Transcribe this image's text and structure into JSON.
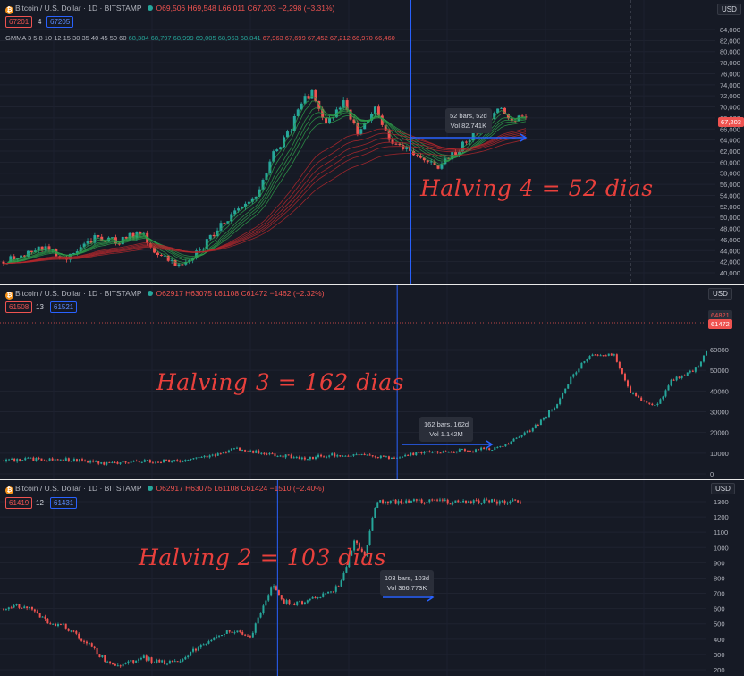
{
  "panels": [
    {
      "title": "Bitcoin / U.S. Dollar · 1D · BITSTAMP",
      "ohlc": {
        "o": "O69,506",
        "h": "H69,548",
        "l": "L66,011",
        "c": "C67,203",
        "chg": "−2,298 (−3.31%)"
      },
      "sell": "67201",
      "spread": "4",
      "buy": "67205",
      "gmma": {
        "label": "GMMA 3 5 8 10 12 15 30 35 40 45 50 60",
        "green": "68,384 68,797 68,999 69,005 68,963 68,841",
        "red": "67,963 67,699 67,452 67,212 66,970 66,460"
      },
      "currency": "USD",
      "annotation": "Halving 4 = 52 dias",
      "measure": {
        "line1": "52 bars, 52d",
        "line2": "Vol 82.741K"
      },
      "last_price": "67,203"
    },
    {
      "title": "Bitcoin / U.S. Dollar · 1D · BITSTAMP",
      "ohlc": {
        "o": "O62917",
        "h": "H63075",
        "l": "L61108",
        "c": "C61472",
        "chg": "−1462 (−2.32%)"
      },
      "sell": "61508",
      "spread": "13",
      "buy": "61521",
      "currency": "USD",
      "annotation": "Halving 3 = 162 dias",
      "measure": {
        "line1": "162 bars, 162d",
        "line2": "Vol 1.142M"
      },
      "price_tags": [
        "64821",
        "61472"
      ]
    },
    {
      "title": "Bitcoin / U.S. Dollar · 1D · BITSTAMP",
      "ohlc": {
        "o": "O62917",
        "h": "H63075",
        "l": "L61108",
        "c": "C61424",
        "chg": "−1510 (−2.40%)"
      },
      "sell": "61419",
      "spread": "12",
      "buy": "61431",
      "currency": "USD",
      "annotation": "Halving 2 = 103 dias",
      "measure": {
        "line1": "103 bars, 103d",
        "line2": "Vol 366.773K"
      }
    }
  ],
  "chart_data": [
    {
      "type": "candlestick",
      "title": "Bitcoin / U.S. Dollar · 1D · BITSTAMP",
      "y_ticks": [
        "84,000",
        "82,000",
        "80,000",
        "78,000",
        "76,000",
        "74,000",
        "72,000",
        "70,000",
        "68,000",
        "66,000",
        "64,000",
        "62,000",
        "60,000",
        "58,000",
        "56,000",
        "54,000",
        "52,000",
        "50,000",
        "48,000",
        "46,000",
        "44,000",
        "42,000",
        "40,000"
      ],
      "ylim": [
        39000,
        85000
      ],
      "price_path": [
        [
          0,
          42000
        ],
        [
          0.08,
          44500
        ],
        [
          0.12,
          42500
        ],
        [
          0.18,
          46500
        ],
        [
          0.22,
          45500
        ],
        [
          0.26,
          47500
        ],
        [
          0.3,
          43000
        ],
        [
          0.33,
          41500
        ],
        [
          0.37,
          43500
        ],
        [
          0.41,
          48000
        ],
        [
          0.45,
          52000
        ],
        [
          0.48,
          53000
        ],
        [
          0.5,
          58000
        ],
        [
          0.52,
          62000
        ],
        [
          0.55,
          66000
        ],
        [
          0.57,
          71000
        ],
        [
          0.59,
          72500
        ],
        [
          0.62,
          67000
        ],
        [
          0.65,
          71000
        ],
        [
          0.68,
          65000
        ],
        [
          0.71,
          70000
        ],
        [
          0.74,
          64000
        ],
        [
          0.78,
          62000
        ],
        [
          0.81,
          60500
        ],
        [
          0.83,
          58500
        ],
        [
          0.86,
          61500
        ],
        [
          0.89,
          64000
        ],
        [
          0.92,
          67000
        ],
        [
          0.95,
          69500
        ],
        [
          0.98,
          67500
        ],
        [
          1.0,
          68500
        ]
      ],
      "halving_line_at": 0.78,
      "measure": {
        "bars": 52,
        "days": 52,
        "start_price": 64000
      }
    },
    {
      "type": "candlestick",
      "title": "Bitcoin / U.S. Dollar · 1D · BITSTAMP",
      "y_ticks": [
        "60000",
        "50000",
        "40000",
        "30000",
        "20000",
        "10000",
        "0"
      ],
      "ylim": [
        -2000,
        66000
      ],
      "price_path": [
        [
          0,
          6500
        ],
        [
          0.05,
          7200
        ],
        [
          0.1,
          6800
        ],
        [
          0.15,
          5000
        ],
        [
          0.2,
          6300
        ],
        [
          0.25,
          6500
        ],
        [
          0.3,
          9000
        ],
        [
          0.33,
          12000
        ],
        [
          0.36,
          10500
        ],
        [
          0.4,
          8500
        ],
        [
          0.43,
          7500
        ],
        [
          0.46,
          9000
        ],
        [
          0.5,
          9200
        ],
        [
          0.53,
          8800
        ],
        [
          0.56,
          7000
        ],
        [
          0.58,
          9500
        ],
        [
          0.6,
          10200
        ],
        [
          0.63,
          11000
        ],
        [
          0.67,
          11500
        ],
        [
          0.7,
          12500
        ],
        [
          0.73,
          17000
        ],
        [
          0.76,
          24000
        ],
        [
          0.79,
          35000
        ],
        [
          0.81,
          48000
        ],
        [
          0.83,
          56000
        ],
        [
          0.85,
          58000
        ],
        [
          0.87,
          57000
        ],
        [
          0.89,
          40000
        ],
        [
          0.91,
          35000
        ],
        [
          0.93,
          33000
        ],
        [
          0.95,
          45000
        ],
        [
          0.97,
          48000
        ],
        [
          0.99,
          52000
        ],
        [
          1.0,
          59000
        ]
      ],
      "halving_line_at": 0.56,
      "measure": {
        "bars": 162,
        "days": 162,
        "start_price": 10500
      }
    },
    {
      "type": "candlestick",
      "title": "Bitcoin / U.S. Dollar · 1D · BITSTAMP",
      "y_ticks": [
        "1300",
        "1200",
        "1100",
        "1000",
        "900",
        "800",
        "700",
        "600",
        "500",
        "400",
        "300",
        "200"
      ],
      "ylim": [
        180,
        1340
      ],
      "price_path": [
        [
          0,
          600
        ],
        [
          0.04,
          620
        ],
        [
          0.08,
          520
        ],
        [
          0.12,
          480
        ],
        [
          0.16,
          380
        ],
        [
          0.2,
          250
        ],
        [
          0.23,
          230
        ],
        [
          0.27,
          280
        ],
        [
          0.3,
          250
        ],
        [
          0.34,
          250
        ],
        [
          0.37,
          330
        ],
        [
          0.41,
          420
        ],
        [
          0.45,
          460
        ],
        [
          0.48,
          420
        ],
        [
          0.5,
          600
        ],
        [
          0.52,
          750
        ],
        [
          0.54,
          650
        ],
        [
          0.57,
          630
        ],
        [
          0.6,
          660
        ],
        [
          0.63,
          700
        ],
        [
          0.65,
          760
        ],
        [
          0.67,
          950
        ],
        [
          0.68,
          1050
        ],
        [
          0.7,
          950
        ],
        [
          0.72,
          1300
        ]
      ],
      "halving_line_at": 0.53,
      "measure": {
        "bars": 103,
        "days": 103,
        "start_price": 650
      }
    }
  ]
}
